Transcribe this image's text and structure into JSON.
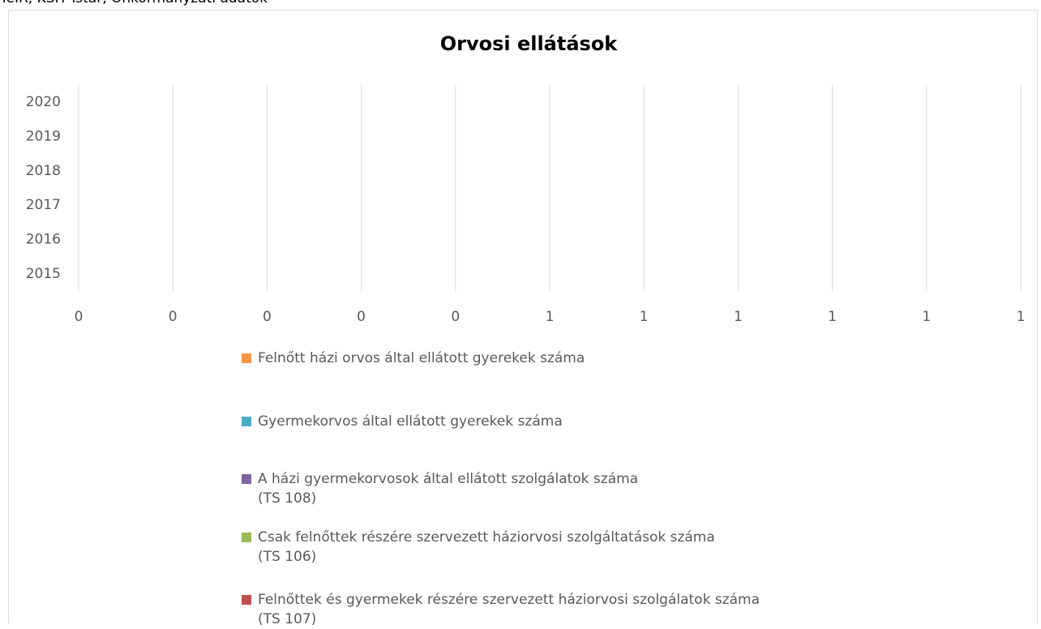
{
  "source": "TeIR, KSH Tstar, Önkormányzati adatok",
  "chart_data": {
    "type": "barh",
    "title": "Orvosi ellátások",
    "categories": [
      "2015",
      "2016",
      "2017",
      "2018",
      "2019",
      "2020"
    ],
    "series": [
      {
        "name": "Felnőtt házi orvos által ellátott gyerekek száma",
        "color": "#f79646",
        "values": [
          null,
          null,
          null,
          null,
          null,
          null
        ]
      },
      {
        "name": "Gyermekorvos által ellátott gyerekek száma",
        "color": "#4bacc6",
        "values": [
          null,
          null,
          null,
          null,
          null,
          null
        ]
      },
      {
        "name": "A házi gyermekorvosok által ellátott szolgálatok száma\n(TS 108)",
        "color": "#8064a2",
        "values": [
          null,
          null,
          null,
          null,
          null,
          null
        ]
      },
      {
        "name": "Csak felnőttek részére szervezett háziorvosi szolgáltatások száma\n(TS 106)",
        "color": "#9bbb59",
        "values": [
          null,
          null,
          null,
          null,
          null,
          null
        ]
      },
      {
        "name": "Felnőttek és gyermekek részére szervezett háziorvosi szolgálatok száma\n(TS 107)",
        "color": "#c0504d",
        "values": [
          null,
          null,
          null,
          null,
          null,
          null
        ]
      }
    ],
    "xlim": [
      0,
      1
    ],
    "xticks": [
      0,
      {
        "value": 0.1,
        "label": "0"
      },
      {
        "value": 0.2,
        "label": "0"
      },
      {
        "value": 0.3,
        "label": "0"
      },
      {
        "value": 0.4,
        "label": "0"
      },
      {
        "value": 0.5,
        "label": "1"
      },
      {
        "value": 0.6,
        "label": "1"
      },
      {
        "value": 0.7,
        "label": "1"
      },
      {
        "value": 0.8,
        "label": "1"
      },
      {
        "value": 0.9,
        "label": "1"
      },
      1
    ],
    "grid": true
  }
}
